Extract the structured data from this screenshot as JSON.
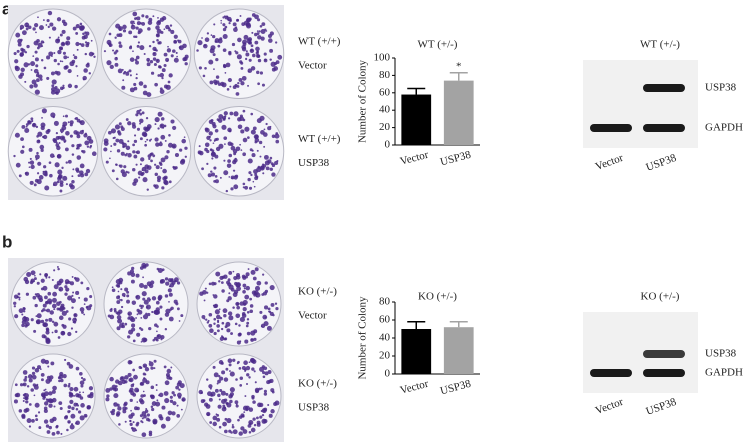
{
  "chart_data": [
    {
      "type": "bar",
      "title": "WT (+/-)",
      "y_label": "Number of Colony",
      "categories": [
        "Vector",
        "USP38"
      ],
      "values": [
        58,
        74
      ],
      "errors": [
        7,
        9
      ],
      "colors": [
        "#000000",
        "#a3a3a3"
      ],
      "annotations": [
        "*"
      ],
      "ylim": [
        0,
        100
      ],
      "yticks": [
        0,
        20,
        40,
        60,
        80,
        100
      ]
    },
    {
      "type": "bar",
      "title": "KO (+/-)",
      "y_label": "Number of Colony",
      "categories": [
        "Vector",
        "USP38"
      ],
      "values": [
        50,
        52
      ],
      "errors": [
        8,
        6
      ],
      "colors": [
        "#000000",
        "#a3a3a3"
      ],
      "ylim": [
        0,
        80
      ],
      "yticks": [
        0,
        20,
        40,
        60,
        80
      ]
    }
  ],
  "panels": [
    {
      "letter": "a",
      "plate_labels": [
        [
          "WT (+/+)",
          "Vector"
        ],
        [
          "WT (+/+)",
          "USP38"
        ]
      ],
      "blot": {
        "title": "WT (+/-)",
        "bands": [
          "USP38",
          "GAPDH"
        ],
        "lanes": [
          "Vector",
          "USP38"
        ]
      }
    },
    {
      "letter": "b",
      "plate_labels": [
        [
          "KO (+/-)",
          "Vector"
        ],
        [
          "KO (+/-)",
          "USP38"
        ]
      ],
      "blot": {
        "title": "KO (+/-)",
        "bands": [
          "USP38",
          "GAPDH"
        ],
        "lanes": [
          "Vector",
          "USP38"
        ]
      }
    }
  ]
}
